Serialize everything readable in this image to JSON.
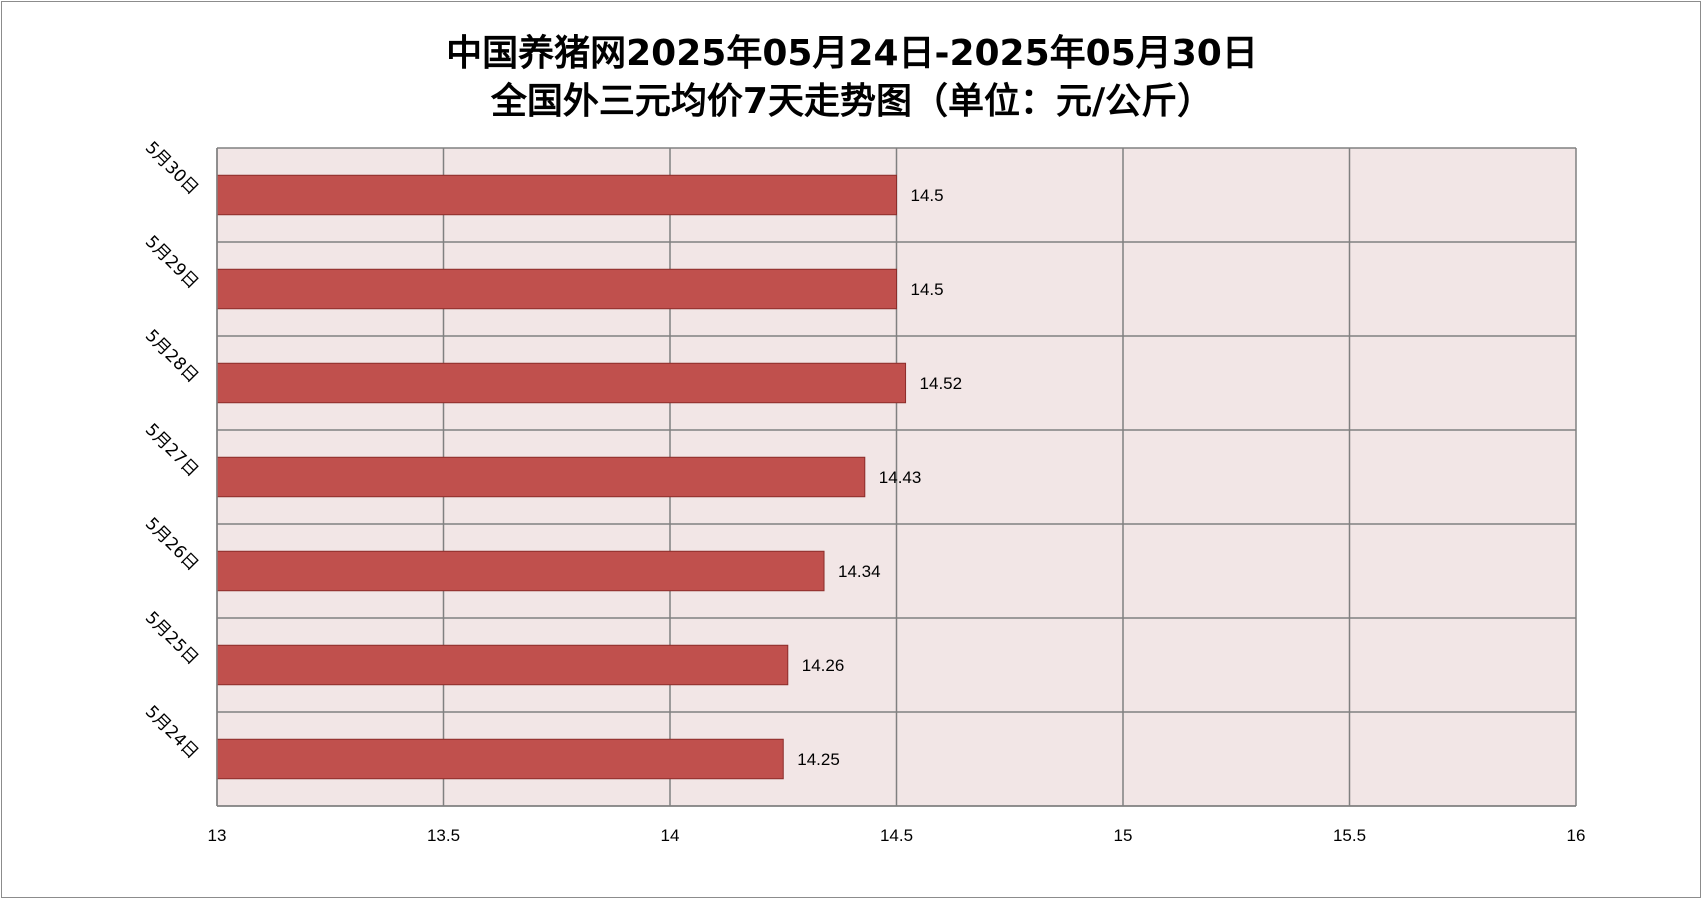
{
  "chart_data": {
    "type": "bar",
    "orientation": "horizontal",
    "title_line1": "中国养猪网2025年05月24日-2025年05月30日",
    "title_line2": "全国外三元均价7天走势图（单位：元/公斤）",
    "categories": [
      "5月24日",
      "5月25日",
      "5月26日",
      "5月27日",
      "5月28日",
      "5月29日",
      "5月30日"
    ],
    "values": [
      14.25,
      14.26,
      14.34,
      14.43,
      14.52,
      14.5,
      14.5
    ],
    "data_labels": [
      "14.25",
      "14.26",
      "14.34",
      "14.43",
      "14.52",
      "14.5",
      "14.5"
    ],
    "xlim": [
      13,
      16
    ],
    "xticks": [
      "13",
      "13.5",
      "14",
      "14.5",
      "15",
      "15.5",
      "16"
    ],
    "grid": true,
    "legend": "none",
    "colors": {
      "bar": "#c0504d",
      "bar_border": "#8b2d2b",
      "plot_bg": "#f2e6e6",
      "grid": "#808080"
    }
  }
}
